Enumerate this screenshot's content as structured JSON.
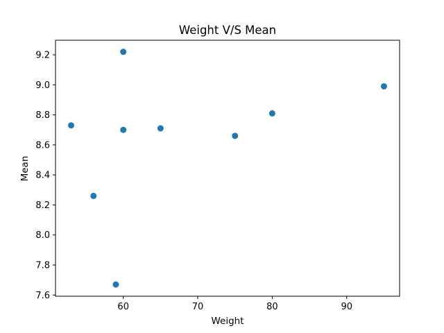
{
  "chart_data": {
    "type": "scatter",
    "title": "Weight V/S Mean",
    "xlabel": "Weight",
    "ylabel": "Mean",
    "xlim": [
      50.9,
      97.1
    ],
    "ylim": [
      7.592,
      9.297
    ],
    "xticks": [
      60,
      70,
      80,
      90
    ],
    "xtick_labels": [
      "60",
      "70",
      "80",
      "90"
    ],
    "yticks": [
      7.6,
      7.8,
      8.0,
      8.2,
      8.4,
      8.6,
      8.8,
      9.0,
      9.2
    ],
    "ytick_labels": [
      "7.6",
      "7.8",
      "8.0",
      "8.2",
      "8.4",
      "8.6",
      "8.8",
      "9.0",
      "9.2"
    ],
    "grid": false,
    "legend": "none",
    "marker_color": "#1f77b4",
    "points": [
      {
        "x": 53,
        "y": 8.73
      },
      {
        "x": 56,
        "y": 8.26
      },
      {
        "x": 59,
        "y": 7.67
      },
      {
        "x": 60,
        "y": 9.22
      },
      {
        "x": 60,
        "y": 8.7
      },
      {
        "x": 65,
        "y": 8.71
      },
      {
        "x": 75,
        "y": 8.66
      },
      {
        "x": 80,
        "y": 8.81
      },
      {
        "x": 95,
        "y": 8.99
      }
    ]
  }
}
